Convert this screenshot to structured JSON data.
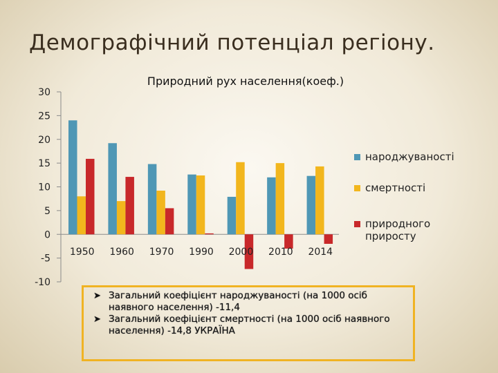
{
  "page_title": "Демографічний потенціал регіону.",
  "chart_data": {
    "type": "bar",
    "title": "Природний рух населення(коеф.)",
    "categories": [
      "1950",
      "1960",
      "1970",
      "1990",
      "2000",
      "2010",
      "2014"
    ],
    "series": [
      {
        "name": "народжуваності",
        "color": "#4f97b5",
        "values": [
          24.0,
          19.2,
          14.8,
          12.6,
          7.9,
          12.0,
          12.3
        ]
      },
      {
        "name": "смертності",
        "color": "#f2b61d",
        "values": [
          8.0,
          7.0,
          9.2,
          12.4,
          15.2,
          15.0,
          14.3
        ]
      },
      {
        "name": "природного приросту",
        "color": "#c8282a",
        "values": [
          15.9,
          12.1,
          5.5,
          0.2,
          -7.3,
          -3.0,
          -2.0
        ]
      }
    ],
    "y_ticks": [
      "30",
      "25",
      "20",
      "15",
      "10",
      "5",
      "0",
      "-5",
      "-10"
    ],
    "ylim": [
      -10,
      30
    ],
    "legend_position": "right",
    "grid": false
  },
  "notes": [
    {
      "bullet": "➤",
      "text": "Загальний коефіцієнт народжуваності (на 1000 осіб наявного населення) -11,4"
    },
    {
      "bullet": "➤",
      "text": "Загальний коефіцієнт смертності (на 1000 осіб наявного населення) -14,8 УКРАЇНА"
    }
  ]
}
